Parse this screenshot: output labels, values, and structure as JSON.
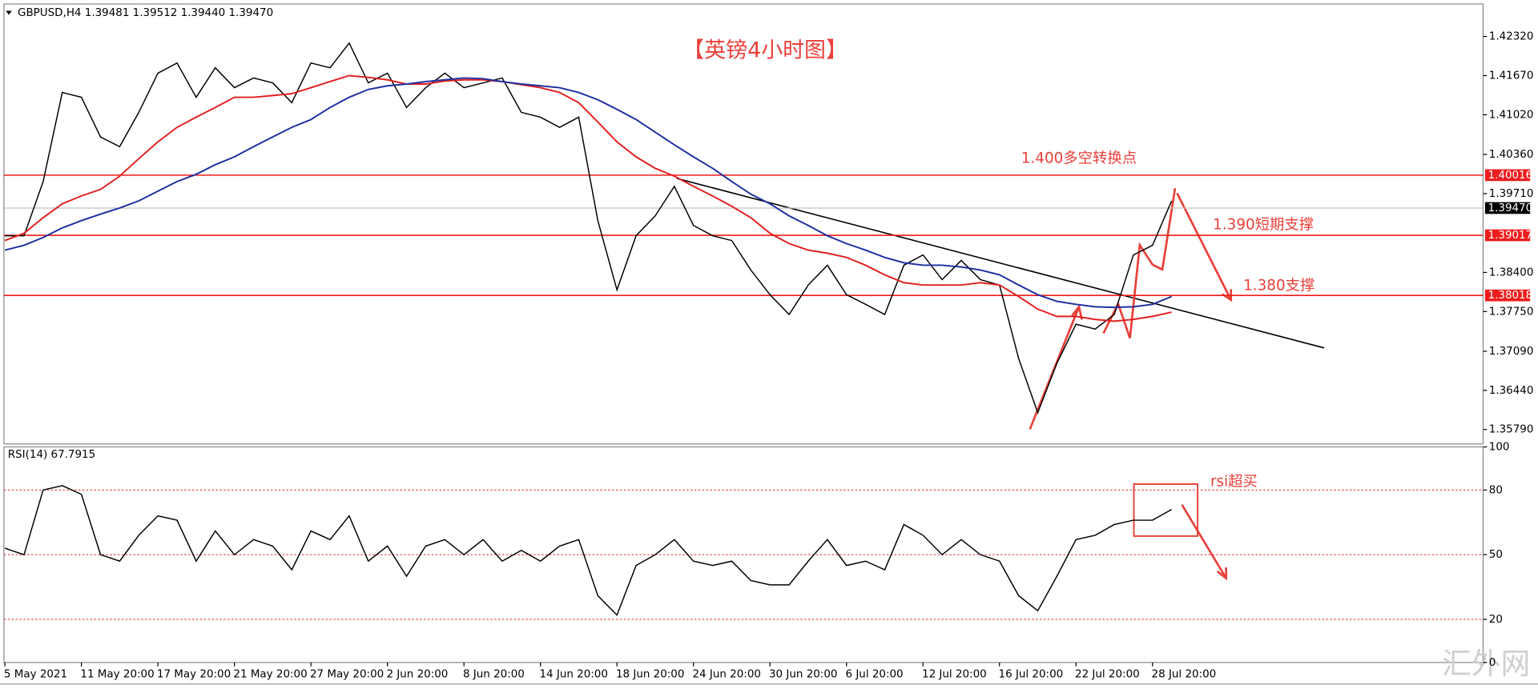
{
  "chart_data": [
    {
      "type": "line",
      "title": "【英镑4小时图】",
      "subtitle": "GBPUSD,H4  1.39481 1.39512 1.39440 1.39470",
      "categories": [
        "5 May 2021",
        null,
        null,
        null,
        "11 May 20:00",
        null,
        null,
        null,
        "17 May 20:00",
        null,
        null,
        null,
        "21 May 20:00",
        null,
        null,
        null,
        "27 May 20:00",
        null,
        null,
        null,
        "2 Jun 20:00",
        null,
        null,
        null,
        "8 Jun 20:00",
        null,
        null,
        null,
        "14 Jun 20:00",
        null,
        null,
        null,
        "18 Jun 20:00",
        null,
        null,
        null,
        "24 Jun 20:00",
        null,
        null,
        null,
        "30 Jun 20:00",
        null,
        null,
        null,
        "6 Jul 20:00",
        null,
        null,
        null,
        "12 Jul 20:00",
        null,
        null,
        null,
        "16 Jul 20:00",
        null,
        null,
        null,
        "22 Jul 20:00",
        null,
        null,
        null,
        "28 Jul 20:00",
        null
      ],
      "series": [
        {
          "color": "#000000",
          "values": [
            1.3901,
            1.3901,
            1.3991,
            1.4139,
            1.4131,
            1.4065,
            1.4049,
            1.4106,
            1.4171,
            1.4188,
            1.4131,
            1.418,
            1.4147,
            1.4163,
            1.4155,
            1.4122,
            1.4188,
            1.418,
            1.4221,
            1.4155,
            1.4171,
            1.4114,
            1.4147,
            1.4171,
            1.4147,
            1.4155,
            1.4163,
            1.4106,
            1.4098,
            1.4081,
            1.4098,
            1.3926,
            1.3811,
            1.3901,
            1.3934,
            1.3983,
            1.3918,
            1.3901,
            1.3893,
            1.3844,
            1.3803,
            1.377,
            1.3819,
            1.3852,
            1.3803,
            1.3787,
            1.377,
            1.3852,
            1.3869,
            1.3828,
            1.386,
            1.3828,
            1.3819,
            1.3697,
            1.3607,
            1.3689,
            1.3754,
            1.3746,
            1.377,
            1.3869,
            1.3885,
            1.3959
          ]
        },
        {
          "color": "#e02020",
          "values": [
            1.3893,
            1.3905,
            1.3931,
            1.3954,
            1.3967,
            1.3978,
            1.4,
            1.4029,
            1.4057,
            1.4081,
            1.4098,
            1.4114,
            1.4131,
            1.4131,
            1.4134,
            1.4137,
            1.4147,
            1.4157,
            1.4167,
            1.4164,
            1.416,
            1.4153,
            1.4153,
            1.4158,
            1.416,
            1.416,
            1.4157,
            1.4152,
            1.4147,
            1.4139,
            1.4122,
            1.409,
            1.4057,
            1.4032,
            1.4013,
            1.4,
            1.3983,
            1.3967,
            1.395,
            1.3931,
            1.3905,
            1.3888,
            1.3877,
            1.3872,
            1.3865,
            1.3852,
            1.3836,
            1.3823,
            1.3819,
            1.3819,
            1.3819,
            1.3823,
            1.3819,
            1.38,
            1.3779,
            1.3767,
            1.3767,
            1.3762,
            1.3759,
            1.3762,
            1.3767,
            1.3774
          ]
        },
        {
          "color": "#1f2fa0",
          "values": [
            1.3877,
            1.3885,
            1.3898,
            1.3914,
            1.3926,
            1.3937,
            1.3947,
            1.3959,
            1.3975,
            1.3991,
            1.4003,
            1.4019,
            1.4032,
            1.4049,
            1.4065,
            1.4081,
            1.4094,
            1.4114,
            1.4131,
            1.4144,
            1.415,
            1.4153,
            1.4157,
            1.416,
            1.4163,
            1.4162,
            1.4157,
            1.4153,
            1.415,
            1.4147,
            1.4139,
            1.4127,
            1.4111,
            1.4094,
            1.4073,
            1.4052,
            1.4032,
            1.4013,
            1.3991,
            1.397,
            1.3954,
            1.3934,
            1.3918,
            1.3901,
            1.3888,
            1.3877,
            1.3865,
            1.3856,
            1.3852,
            1.3852,
            1.3849,
            1.3844,
            1.3836,
            1.3819,
            1.3803,
            1.3792,
            1.3787,
            1.3783,
            1.3782,
            1.3783,
            1.3787,
            1.38
          ]
        }
      ],
      "ylim": [
        1.3555,
        1.4286
      ],
      "yticks": [
        {
          "value": 1.4232,
          "label": "1.42320"
        },
        {
          "value": 1.4167,
          "label": "1.41670"
        },
        {
          "value": 1.4102,
          "label": "1.41020"
        },
        {
          "value": 1.4036,
          "label": "1.40360"
        },
        {
          "value": 1.3971,
          "label": "1.39710"
        },
        {
          "value": 1.384,
          "label": "1.38400"
        },
        {
          "value": 1.3775,
          "label": "1.37750"
        },
        {
          "value": 1.3709,
          "label": "1.37090"
        },
        {
          "value": 1.3644,
          "label": "1.36440"
        },
        {
          "value": 1.3579,
          "label": "1.35790"
        }
      ],
      "levels": [
        1.40016,
        1.39017,
        1.38018
      ],
      "level_color": "#ee1c1c",
      "current_price": {
        "value": 1.3947,
        "label": "1.39470"
      },
      "annotations": [
        "1.400多空转换点",
        "1.390短期支撑",
        "1.380支撑"
      ]
    },
    {
      "type": "line",
      "title": "RSI(14) 67.7915",
      "color": "#000000",
      "values": [
        53,
        50,
        80,
        82,
        78,
        50,
        47,
        59,
        68,
        66,
        47,
        61,
        50,
        57,
        54,
        43,
        61,
        57,
        68,
        47,
        54,
        40,
        54,
        57,
        50,
        57,
        47,
        52,
        47,
        54,
        57,
        31,
        22,
        45,
        50,
        57,
        47,
        45,
        47,
        38,
        36,
        36,
        47,
        57,
        45,
        47,
        43,
        64,
        59,
        50,
        57,
        50,
        47,
        31,
        24,
        40,
        57,
        59,
        64,
        66,
        66,
        71
      ],
      "ylim": [
        0,
        100
      ],
      "yticks": [
        100,
        80,
        50,
        20,
        0
      ],
      "levels": [
        80,
        50,
        20
      ],
      "level_color": "#d9534f",
      "annotations": [
        "rsi超买"
      ]
    }
  ],
  "watermark": "汇外网"
}
